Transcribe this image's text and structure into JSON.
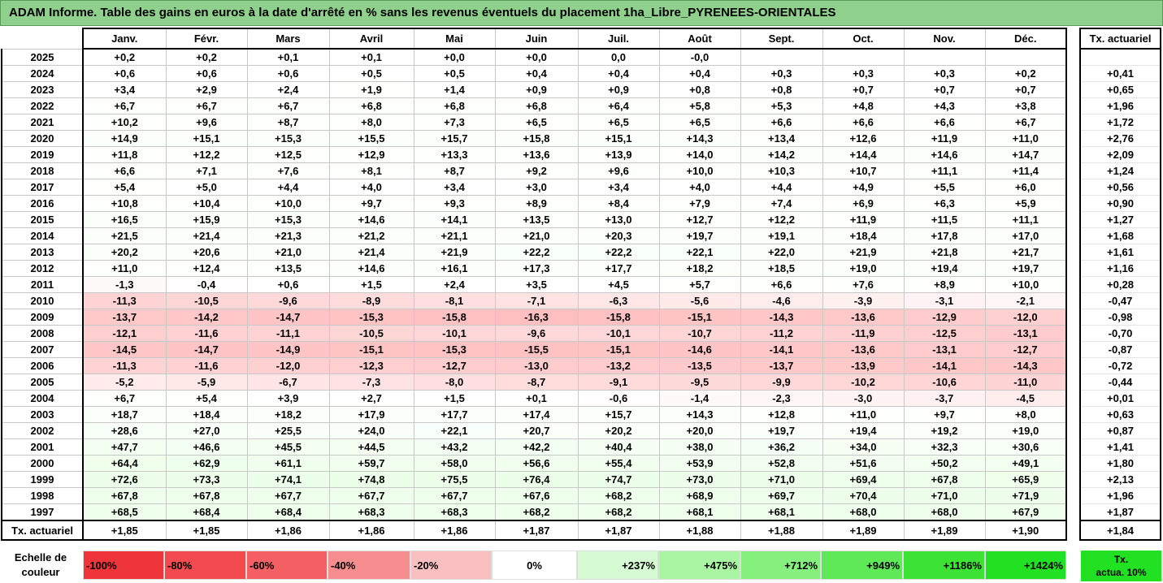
{
  "title": "ADAM Informe. Table des gains en euros à la date d'arrêté en % sans les revenus éventuels du placement 1ha_Libre_PYRENEES-ORIENTALES",
  "months": [
    "Janv.",
    "Févr.",
    "Mars",
    "Avril",
    "Mai",
    "Juin",
    "Juil.",
    "Août",
    "Sept.",
    "Oct.",
    "Nov.",
    "Déc."
  ],
  "ta_header": "Tx. actuariel",
  "rows": [
    {
      "year": "2025",
      "v": [
        "+0,2",
        "+0,2",
        "+0,1",
        "+0,1",
        "+0,0",
        "+0,0",
        "0,0",
        "-0,0",
        "",
        "",
        "",
        ""
      ],
      "ta": ""
    },
    {
      "year": "2024",
      "v": [
        "+0,6",
        "+0,6",
        "+0,6",
        "+0,5",
        "+0,5",
        "+0,4",
        "+0,4",
        "+0,4",
        "+0,3",
        "+0,3",
        "+0,3",
        "+0,2"
      ],
      "ta": "+0,41"
    },
    {
      "year": "2023",
      "v": [
        "+3,4",
        "+2,9",
        "+2,4",
        "+1,9",
        "+1,4",
        "+0,9",
        "+0,9",
        "+0,8",
        "+0,8",
        "+0,7",
        "+0,7",
        "+0,7"
      ],
      "ta": "+0,65"
    },
    {
      "year": "2022",
      "v": [
        "+6,7",
        "+6,7",
        "+6,7",
        "+6,8",
        "+6,8",
        "+6,8",
        "+6,4",
        "+5,8",
        "+5,3",
        "+4,8",
        "+4,3",
        "+3,8"
      ],
      "ta": "+1,96"
    },
    {
      "year": "2021",
      "v": [
        "+10,2",
        "+9,6",
        "+8,7",
        "+8,0",
        "+7,3",
        "+6,5",
        "+6,5",
        "+6,5",
        "+6,6",
        "+6,6",
        "+6,6",
        "+6,7"
      ],
      "ta": "+1,72"
    },
    {
      "year": "2020",
      "v": [
        "+14,9",
        "+15,1",
        "+15,3",
        "+15,5",
        "+15,7",
        "+15,8",
        "+15,1",
        "+14,3",
        "+13,4",
        "+12,6",
        "+11,9",
        "+11,0"
      ],
      "ta": "+2,76"
    },
    {
      "year": "2019",
      "v": [
        "+11,8",
        "+12,2",
        "+12,5",
        "+12,9",
        "+13,3",
        "+13,6",
        "+13,9",
        "+14,0",
        "+14,2",
        "+14,4",
        "+14,6",
        "+14,7"
      ],
      "ta": "+2,09"
    },
    {
      "year": "2018",
      "v": [
        "+6,6",
        "+7,1",
        "+7,6",
        "+8,1",
        "+8,7",
        "+9,2",
        "+9,6",
        "+10,0",
        "+10,3",
        "+10,7",
        "+11,1",
        "+11,4"
      ],
      "ta": "+1,24"
    },
    {
      "year": "2017",
      "v": [
        "+5,4",
        "+5,0",
        "+4,4",
        "+4,0",
        "+3,4",
        "+3,0",
        "+3,4",
        "+4,0",
        "+4,4",
        "+4,9",
        "+5,5",
        "+6,0"
      ],
      "ta": "+0,56"
    },
    {
      "year": "2016",
      "v": [
        "+10,8",
        "+10,4",
        "+10,0",
        "+9,7",
        "+9,3",
        "+8,9",
        "+8,4",
        "+7,9",
        "+7,4",
        "+6,9",
        "+6,3",
        "+5,9"
      ],
      "ta": "+0,90"
    },
    {
      "year": "2015",
      "v": [
        "+16,5",
        "+15,9",
        "+15,3",
        "+14,6",
        "+14,1",
        "+13,5",
        "+13,0",
        "+12,7",
        "+12,2",
        "+11,9",
        "+11,5",
        "+11,1"
      ],
      "ta": "+1,27"
    },
    {
      "year": "2014",
      "v": [
        "+21,5",
        "+21,4",
        "+21,3",
        "+21,2",
        "+21,1",
        "+21,0",
        "+20,3",
        "+19,7",
        "+19,1",
        "+18,4",
        "+17,8",
        "+17,0"
      ],
      "ta": "+1,68"
    },
    {
      "year": "2013",
      "v": [
        "+20,2",
        "+20,6",
        "+21,0",
        "+21,4",
        "+21,9",
        "+22,2",
        "+22,2",
        "+22,1",
        "+22,0",
        "+21,9",
        "+21,8",
        "+21,7"
      ],
      "ta": "+1,61"
    },
    {
      "year": "2012",
      "v": [
        "+11,0",
        "+12,4",
        "+13,5",
        "+14,6",
        "+16,1",
        "+17,3",
        "+17,7",
        "+18,2",
        "+18,5",
        "+19,0",
        "+19,4",
        "+19,7"
      ],
      "ta": "+1,16"
    },
    {
      "year": "2011",
      "v": [
        "-1,3",
        "-0,4",
        "+0,6",
        "+1,5",
        "+2,4",
        "+3,5",
        "+4,5",
        "+5,7",
        "+6,6",
        "+7,6",
        "+8,9",
        "+10,0"
      ],
      "ta": "+0,28"
    },
    {
      "year": "2010",
      "v": [
        "-11,3",
        "-10,5",
        "-9,6",
        "-8,9",
        "-8,1",
        "-7,1",
        "-6,3",
        "-5,6",
        "-4,6",
        "-3,9",
        "-3,1",
        "-2,1"
      ],
      "ta": "-0,47"
    },
    {
      "year": "2009",
      "v": [
        "-13,7",
        "-14,2",
        "-14,7",
        "-15,3",
        "-15,8",
        "-16,3",
        "-15,8",
        "-15,1",
        "-14,3",
        "-13,6",
        "-12,9",
        "-12,0"
      ],
      "ta": "-0,98"
    },
    {
      "year": "2008",
      "v": [
        "-12,1",
        "-11,6",
        "-11,1",
        "-10,5",
        "-10,1",
        "-9,6",
        "-10,1",
        "-10,7",
        "-11,2",
        "-11,9",
        "-12,5",
        "-13,1"
      ],
      "ta": "-0,70"
    },
    {
      "year": "2007",
      "v": [
        "-14,5",
        "-14,7",
        "-14,9",
        "-15,1",
        "-15,3",
        "-15,5",
        "-15,1",
        "-14,6",
        "-14,1",
        "-13,6",
        "-13,1",
        "-12,7"
      ],
      "ta": "-0,87"
    },
    {
      "year": "2006",
      "v": [
        "-11,3",
        "-11,6",
        "-12,0",
        "-12,3",
        "-12,7",
        "-13,0",
        "-13,2",
        "-13,5",
        "-13,7",
        "-13,9",
        "-14,1",
        "-14,3"
      ],
      "ta": "-0,72"
    },
    {
      "year": "2005",
      "v": [
        "-5,2",
        "-5,9",
        "-6,7",
        "-7,3",
        "-8,0",
        "-8,7",
        "-9,1",
        "-9,5",
        "-9,9",
        "-10,2",
        "-10,6",
        "-11,0"
      ],
      "ta": "-0,44"
    },
    {
      "year": "2004",
      "v": [
        "+6,7",
        "+5,4",
        "+3,9",
        "+2,7",
        "+1,5",
        "+0,1",
        "-0,6",
        "-1,4",
        "-2,3",
        "-3,0",
        "-3,7",
        "-4,5"
      ],
      "ta": "+0,01"
    },
    {
      "year": "2003",
      "v": [
        "+18,7",
        "+18,4",
        "+18,2",
        "+17,9",
        "+17,7",
        "+17,4",
        "+15,7",
        "+14,3",
        "+12,8",
        "+11,0",
        "+9,7",
        "+8,0"
      ],
      "ta": "+0,63"
    },
    {
      "year": "2002",
      "v": [
        "+28,6",
        "+27,0",
        "+25,5",
        "+24,0",
        "+22,1",
        "+20,7",
        "+20,2",
        "+20,0",
        "+19,7",
        "+19,4",
        "+19,2",
        "+19,0"
      ],
      "ta": "+0,87"
    },
    {
      "year": "2001",
      "v": [
        "+47,7",
        "+46,6",
        "+45,5",
        "+44,5",
        "+43,2",
        "+42,2",
        "+40,4",
        "+38,0",
        "+36,2",
        "+34,0",
        "+32,3",
        "+30,6"
      ],
      "ta": "+1,41"
    },
    {
      "year": "2000",
      "v": [
        "+64,4",
        "+62,9",
        "+61,1",
        "+59,7",
        "+58,0",
        "+56,6",
        "+55,4",
        "+53,9",
        "+52,8",
        "+51,6",
        "+50,2",
        "+49,1"
      ],
      "ta": "+1,80"
    },
    {
      "year": "1999",
      "v": [
        "+72,6",
        "+73,3",
        "+74,1",
        "+74,8",
        "+75,5",
        "+76,4",
        "+74,7",
        "+73,0",
        "+71,0",
        "+69,4",
        "+67,8",
        "+65,9"
      ],
      "ta": "+2,13"
    },
    {
      "year": "1998",
      "v": [
        "+67,8",
        "+67,8",
        "+67,7",
        "+67,7",
        "+67,7",
        "+67,6",
        "+68,2",
        "+68,9",
        "+69,7",
        "+70,4",
        "+71,0",
        "+71,9"
      ],
      "ta": "+1,96"
    },
    {
      "year": "1997",
      "v": [
        "+68,5",
        "+68,4",
        "+68,4",
        "+68,3",
        "+68,3",
        "+68,2",
        "+68,2",
        "+68,1",
        "+68,1",
        "+68,0",
        "+68,0",
        "+67,9"
      ],
      "ta": "+1,87"
    }
  ],
  "summary": {
    "label": "Tx. actuariel",
    "v": [
      "+1,85",
      "+1,85",
      "+1,86",
      "+1,86",
      "+1,86",
      "+1,87",
      "+1,87",
      "+1,88",
      "+1,88",
      "+1,89",
      "+1,89",
      "+1,90"
    ],
    "ta": "+1,84"
  },
  "legend": {
    "label_line1": "Echelle de",
    "label_line2": "couleur",
    "swatches": [
      {
        "text": "-100%",
        "color": "#f0353a",
        "align": "left"
      },
      {
        "text": "-80%",
        "color": "#f24a4e",
        "align": "left"
      },
      {
        "text": "-60%",
        "color": "#f46064",
        "align": "left"
      },
      {
        "text": "-40%",
        "color": "#f68d8f",
        "align": "left"
      },
      {
        "text": "-20%",
        "color": "#fac0c1",
        "align": "left"
      },
      {
        "text": "0%",
        "color": "#ffffff",
        "align": "center"
      },
      {
        "text": "+237%",
        "color": "#d6fbd3",
        "align": "right"
      },
      {
        "text": "+475%",
        "color": "#a9f5a3",
        "align": "right"
      },
      {
        "text": "+712%",
        "color": "#86f07e",
        "align": "right"
      },
      {
        "text": "+949%",
        "color": "#5fe957",
        "align": "right"
      },
      {
        "text": "+1186%",
        "color": "#3de334",
        "align": "right"
      },
      {
        "text": "+1424%",
        "color": "#22e022",
        "align": "right"
      }
    ],
    "ta_line1": "Tx.",
    "ta_line2": "actua. 10%"
  }
}
